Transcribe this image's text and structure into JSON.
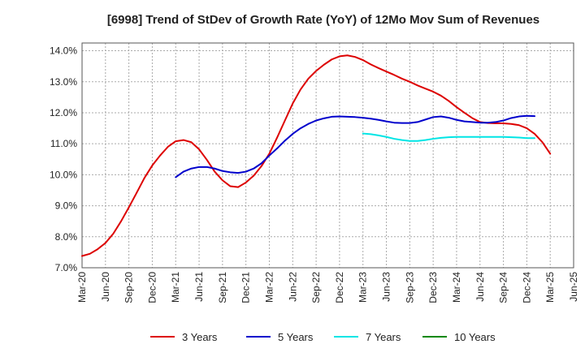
{
  "chart_data": {
    "type": "line",
    "title": "[6998]  Trend of StDev of Growth Rate (YoY) of 12Mo Mov Sum of Revenues",
    "xlabel": "",
    "ylabel": "",
    "ylim": [
      7.0,
      14.25
    ],
    "ytick_values": [
      7,
      8,
      9,
      10,
      11,
      12,
      13,
      14
    ],
    "ytick_labels": [
      "7.0%",
      "8.0%",
      "9.0%",
      "10.0%",
      "11.0%",
      "12.0%",
      "13.0%",
      "14.0%"
    ],
    "x_start": "2020-03",
    "x_end": "2025-06",
    "xtick_labels": [
      "Mar-20",
      "Jun-20",
      "Sep-20",
      "Dec-20",
      "Mar-21",
      "Jun-21",
      "Sep-21",
      "Dec-21",
      "Mar-22",
      "Jun-22",
      "Sep-22",
      "Dec-22",
      "Mar-23",
      "Jun-23",
      "Sep-23",
      "Dec-23",
      "Mar-24",
      "Jun-24",
      "Sep-24",
      "Dec-24",
      "Mar-25",
      "Jun-25"
    ],
    "grid": true,
    "legend_position": "bottom",
    "series": [
      {
        "name": "3 Years",
        "color": "#dd0000",
        "start": "2020-03",
        "values": [
          7.38,
          7.45,
          7.6,
          7.8,
          8.1,
          8.5,
          8.95,
          9.42,
          9.9,
          10.3,
          10.62,
          10.9,
          11.08,
          11.12,
          11.05,
          10.82,
          10.48,
          10.1,
          9.82,
          9.63,
          9.6,
          9.75,
          9.97,
          10.28,
          10.68,
          11.2,
          11.75,
          12.3,
          12.75,
          13.1,
          13.35,
          13.55,
          13.72,
          13.82,
          13.85,
          13.8,
          13.7,
          13.56,
          13.44,
          13.33,
          13.22,
          13.1,
          13.0,
          12.88,
          12.78,
          12.68,
          12.55,
          12.38,
          12.18,
          12.0,
          11.83,
          11.7,
          11.67,
          11.66,
          11.66,
          11.64,
          11.6,
          11.5,
          11.32,
          11.05,
          10.68
        ]
      },
      {
        "name": "5 Years",
        "color": "#0000cc",
        "start": "2021-03",
        "values": [
          9.92,
          10.1,
          10.2,
          10.25,
          10.25,
          10.2,
          10.12,
          10.08,
          10.06,
          10.1,
          10.2,
          10.37,
          10.62,
          10.85,
          11.1,
          11.32,
          11.5,
          11.64,
          11.75,
          11.82,
          11.87,
          11.88,
          11.87,
          11.86,
          11.84,
          11.81,
          11.77,
          11.72,
          11.68,
          11.67,
          11.67,
          11.7,
          11.78,
          11.86,
          11.88,
          11.84,
          11.77,
          11.72,
          11.7,
          11.68,
          11.68,
          11.7,
          11.75,
          11.83,
          11.88,
          11.9,
          11.89
        ]
      },
      {
        "name": "7 Years",
        "color": "#00e5e5",
        "start": "2023-03",
        "values": [
          11.33,
          11.31,
          11.27,
          11.22,
          11.16,
          11.12,
          11.09,
          11.09,
          11.12,
          11.16,
          11.19,
          11.21,
          11.22,
          11.22,
          11.22,
          11.22,
          11.22,
          11.22,
          11.22,
          11.21,
          11.2,
          11.18,
          11.18
        ]
      },
      {
        "name": "10 Years",
        "color": "#008800",
        "start": "2025-03",
        "values": []
      }
    ]
  }
}
